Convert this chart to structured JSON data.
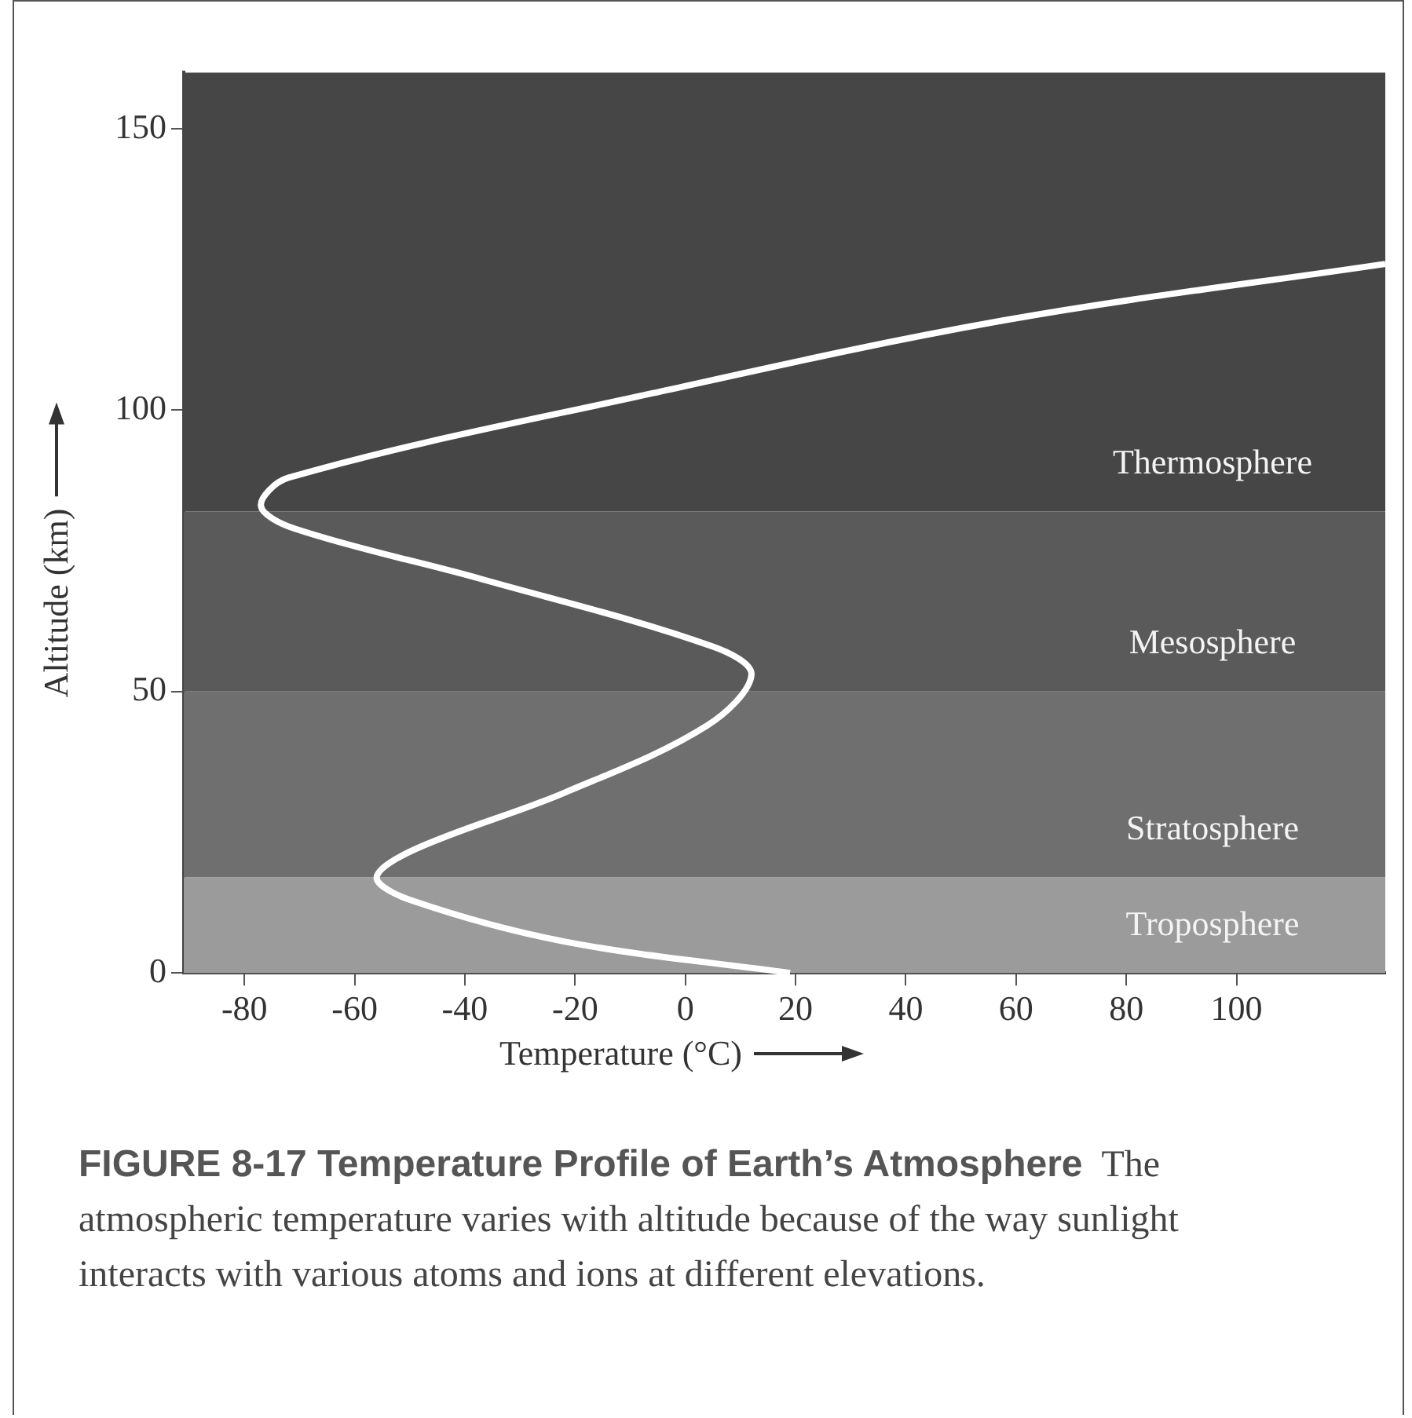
{
  "chart_data": {
    "type": "line",
    "title": "FIGURE 8-17  Temperature Profile of Earth’s Atmosphere",
    "subtitle": "The atmospheric temperature varies with altitude because of the way sunlight interacts with various atoms and ions at different elevations.",
    "xlabel": "Temperature (°C)",
    "ylabel": "Altitude (km)",
    "series": [
      {
        "color": "#ffffff",
        "x": [
          19,
          -22,
          -50,
          -56,
          -49,
          -22,
          4,
          12,
          5,
          -37,
          -71,
          -77,
          -72,
          -6,
          58,
          127
        ],
        "values": [
          0,
          5.6,
          13,
          17,
          22,
          32,
          44,
          53,
          58,
          70,
          79,
          83,
          88,
          103,
          116,
          126
        ]
      }
    ],
    "xlim": [
      -91,
      127
    ],
    "ylim": [
      0,
      160
    ],
    "xticks": [
      -80,
      -60,
      -40,
      -20,
      0,
      20,
      40,
      60,
      80,
      100
    ],
    "yticks": [
      0,
      50,
      100,
      150
    ],
    "bands": [
      {
        "axis": "y",
        "from": 0,
        "to": 17,
        "label": "Troposphere",
        "color": "#9b9b9b"
      },
      {
        "axis": "y",
        "from": 17,
        "to": 50,
        "label": "Stratosphere",
        "color": "#6f6f6f"
      },
      {
        "axis": "y",
        "from": 50,
        "to": 82,
        "label": "Mesosphere",
        "color": "#5a5a5a"
      },
      {
        "axis": "y",
        "from": 82,
        "to": 160,
        "label": "Thermosphere",
        "color": "#464646"
      }
    ],
    "grid": false,
    "legend": false,
    "marker": "none",
    "line_style": "solid"
  }
}
